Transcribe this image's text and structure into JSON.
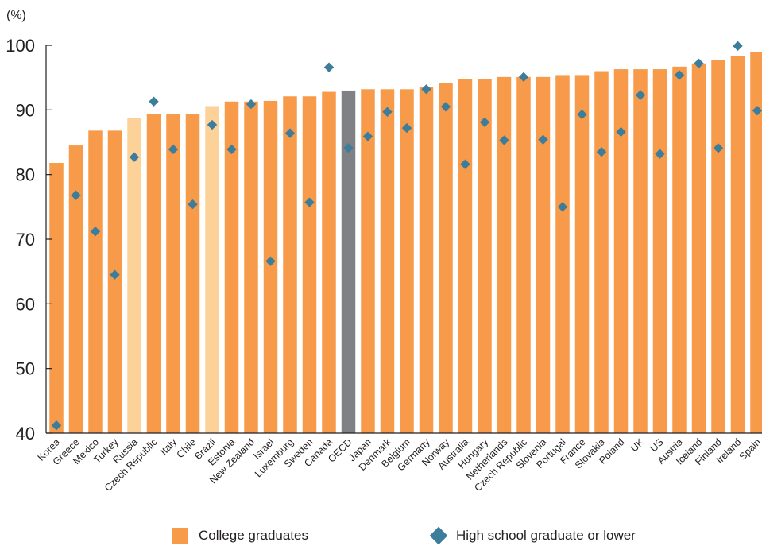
{
  "chart_data": {
    "type": "bar",
    "unit_label": "(%)",
    "ylim": [
      40,
      100
    ],
    "yticks": [
      40,
      50,
      60,
      70,
      80,
      90,
      100
    ],
    "grid": false,
    "legend_position": "bottom",
    "categories": [
      "Korea",
      "Greece",
      "Mexico",
      "Turkey",
      "Russia",
      "Czech Republic",
      "Italy",
      "Chile",
      "Brazil",
      "Estonia",
      "New Zealand",
      "Israel",
      "Luxemburg",
      "Sweden",
      "Canada",
      "OECD",
      "Japan",
      "Denmark",
      "Belgium",
      "Germany",
      "Norway",
      "Australia",
      "Hungary",
      "Netherlands",
      "Czech Republic",
      "Slovenia",
      "Portugal",
      "France",
      "Slovakia",
      "Poland",
      "UK",
      "US",
      "Austria",
      "Iceland",
      "Finland",
      "Ireland",
      "Spain"
    ],
    "series": [
      {
        "name": "College graduates",
        "kind": "bar",
        "values": [
          81.8,
          84.5,
          86.8,
          86.8,
          88.8,
          89.3,
          89.3,
          89.3,
          90.6,
          91.3,
          91.3,
          91.4,
          92.1,
          92.1,
          92.8,
          93.0,
          93.2,
          93.2,
          93.2,
          93.6,
          94.2,
          94.8,
          94.8,
          95.1,
          95.1,
          95.1,
          95.4,
          95.4,
          96.0,
          96.3,
          96.3,
          96.3,
          96.7,
          97.2,
          97.7,
          98.3,
          98.9
        ]
      },
      {
        "name": "High school graduate or lower",
        "kind": "marker",
        "values": [
          41.2,
          76.8,
          71.2,
          64.5,
          82.7,
          91.3,
          83.9,
          75.4,
          87.7,
          83.9,
          90.9,
          66.6,
          86.4,
          75.7,
          96.6,
          84.1,
          85.9,
          89.7,
          87.2,
          93.2,
          90.5,
          81.6,
          88.1,
          85.3,
          95.1,
          85.4,
          75.0,
          89.3,
          83.5,
          86.6,
          92.3,
          83.2,
          95.4,
          97.2,
          84.1,
          99.9,
          89.9
        ]
      }
    ],
    "bar_colors": {
      "default": "#f79a4a",
      "partner": "#fdd299",
      "average": "#808184"
    },
    "bar_color_groups": [
      "default",
      "default",
      "default",
      "default",
      "partner",
      "default",
      "default",
      "default",
      "partner",
      "default",
      "default",
      "default",
      "default",
      "default",
      "default",
      "average",
      "default",
      "default",
      "default",
      "default",
      "default",
      "default",
      "default",
      "default",
      "default",
      "default",
      "default",
      "default",
      "default",
      "default",
      "default",
      "default",
      "default",
      "default",
      "default",
      "default",
      "default"
    ],
    "marker_color": "#3b7d9b",
    "axis_color": "#231f20"
  },
  "legend": {
    "bar_label": "College graduates",
    "marker_label": "High school graduate or lower"
  }
}
